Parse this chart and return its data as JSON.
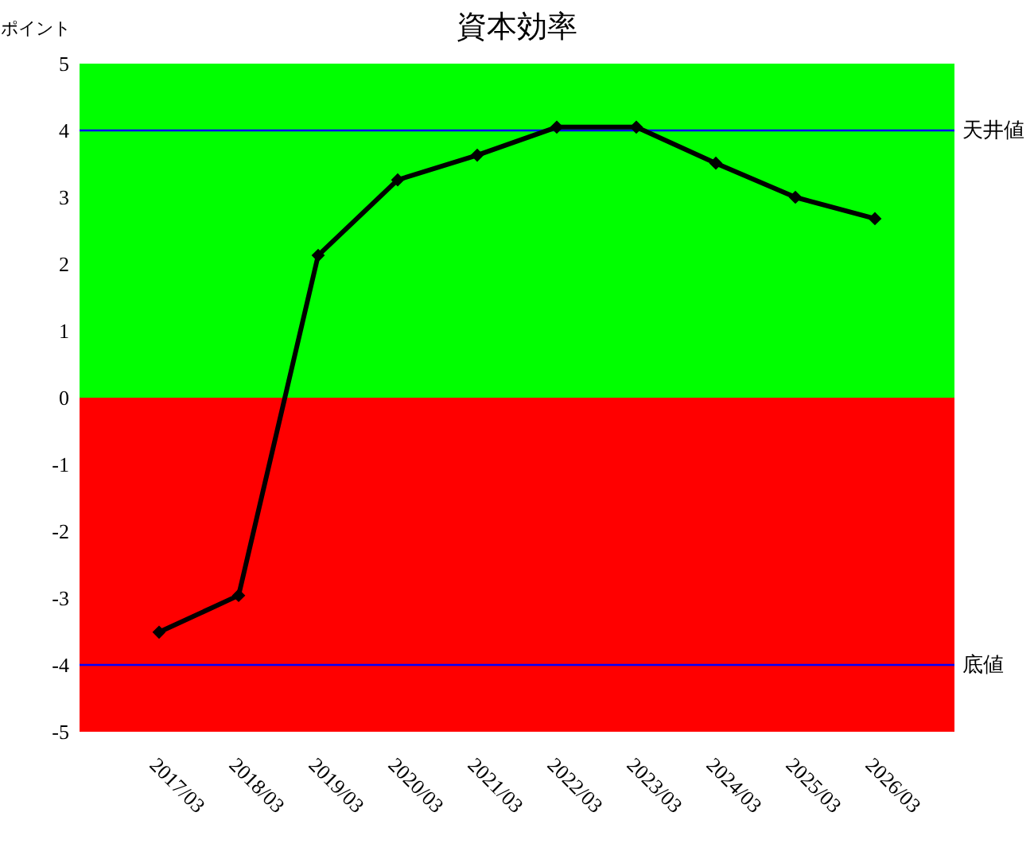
{
  "chart_data": {
    "type": "line",
    "title": "資本効率",
    "ylabel": "ポイント",
    "categories": [
      "2017/03",
      "2018/03",
      "2019/03",
      "2020/03",
      "2021/03",
      "2022/03",
      "2023/03",
      "2024/03",
      "2025/03",
      "2026/03"
    ],
    "series": [
      {
        "color": "#000000",
        "values": [
          -3.51,
          -2.96,
          2.13,
          3.26,
          3.63,
          4.05,
          4.05,
          3.51,
          3.0,
          2.68
        ]
      }
    ],
    "ylim": [
      -5,
      5
    ],
    "yticks": [
      -5,
      -4,
      -3,
      -2,
      -1,
      0,
      1,
      2,
      3,
      4,
      5
    ],
    "ref_lines": [
      {
        "axis": "y",
        "value": 4,
        "label": "天井値",
        "color": "#0000ff"
      },
      {
        "axis": "y",
        "value": -4,
        "label": "底値",
        "color": "#0000ff"
      }
    ],
    "bands": [
      {
        "axis": "y",
        "from": 0,
        "to": 5,
        "color": "#00ff00"
      },
      {
        "axis": "y",
        "from": -5,
        "to": 0,
        "color": "#ff0000"
      }
    ],
    "grid": false,
    "marker": "diamond",
    "line_style": "solid"
  }
}
